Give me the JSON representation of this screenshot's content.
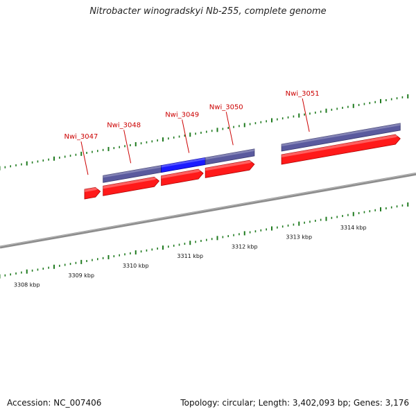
{
  "title": "Nitrobacter winogradskyi Nb-255, complete genome",
  "footer": {
    "accession": "Accession: NC_007406",
    "summary": "Topology: circular; Length: 3,402,093 bp; Genes: 3,176"
  },
  "colors": {
    "forward_gene": "#ff1a1a",
    "cds_bar": "#5a5a9e",
    "cds_highlight": "#1a1aff",
    "label": "#cc0000",
    "tick": "#1e7a1e",
    "backbone": "#8c8c8c"
  },
  "scale": {
    "start_kbp": 3307.3,
    "end_kbp": 3315.0,
    "labels": [
      {
        "kbp": 3308,
        "text": "3308 kbp"
      },
      {
        "kbp": 3309,
        "text": "3309 kbp"
      },
      {
        "kbp": 3310,
        "text": "3310 kbp"
      },
      {
        "kbp": 3311,
        "text": "3311 kbp"
      },
      {
        "kbp": 3312,
        "text": "3312 kbp"
      },
      {
        "kbp": 3313,
        "text": "3313 kbp"
      },
      {
        "kbp": 3314,
        "text": "3314 kbp"
      }
    ]
  },
  "genes": [
    {
      "name": "Nwi_3047",
      "start_kbp": 3309.06,
      "end_kbp": 3309.35
    },
    {
      "name": "Nwi_3048",
      "start_kbp": 3309.4,
      "end_kbp": 3310.43
    },
    {
      "name": "Nwi_3049",
      "start_kbp": 3310.47,
      "end_kbp": 3311.24
    },
    {
      "name": "Nwi_3050",
      "start_kbp": 3311.28,
      "end_kbp": 3312.18
    },
    {
      "name": "Nwi_3051",
      "start_kbp": 3312.68,
      "end_kbp": 3314.86
    }
  ],
  "cds": [
    {
      "gene": "Nwi_3048",
      "start_kbp": 3309.4,
      "end_kbp": 3310.47,
      "highlight": false
    },
    {
      "gene": "Nwi_3049",
      "start_kbp": 3310.47,
      "end_kbp": 3311.28,
      "highlight": true
    },
    {
      "gene": "Nwi_3050",
      "start_kbp": 3311.28,
      "end_kbp": 3312.18,
      "highlight": false
    },
    {
      "gene": "Nwi_3051",
      "start_kbp": 3312.68,
      "end_kbp": 3314.86,
      "highlight": false
    }
  ]
}
